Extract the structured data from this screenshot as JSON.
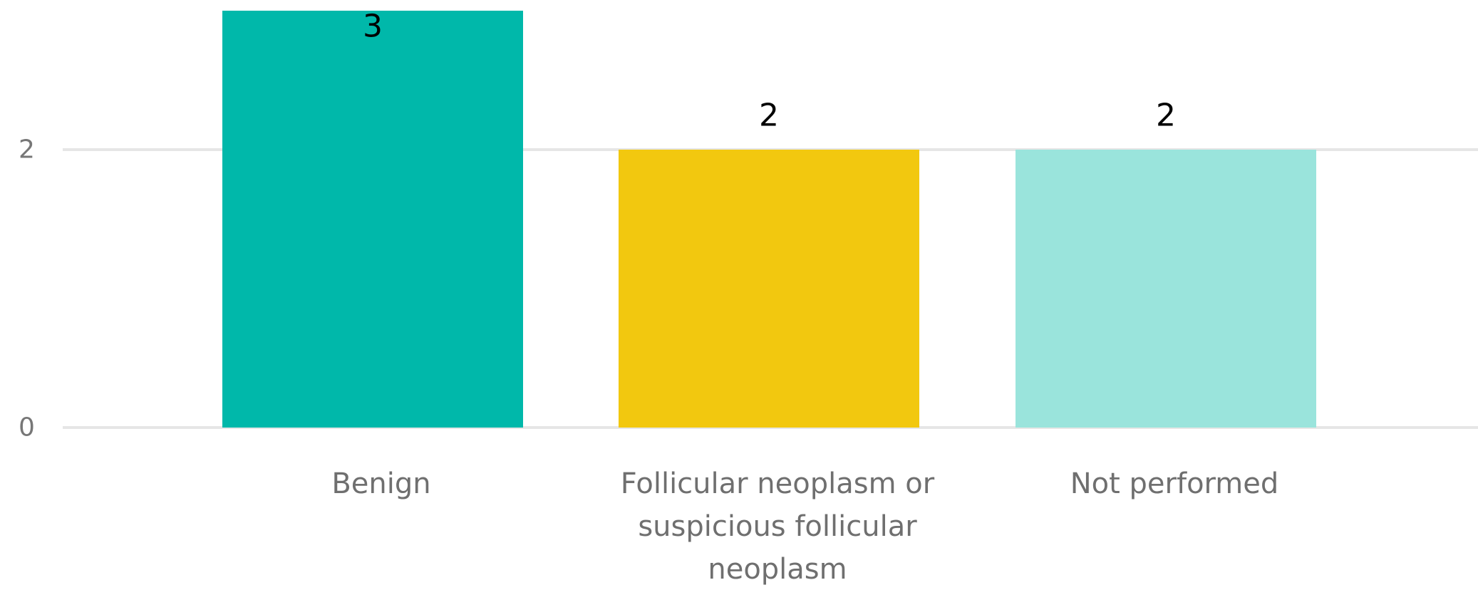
{
  "chart_data": {
    "type": "bar",
    "categories": [
      [
        "Benign"
      ],
      [
        "Follicular neoplasm or",
        "suspicious follicular",
        "neoplasm"
      ],
      [
        "Not performed"
      ]
    ],
    "values": [
      3,
      2,
      2
    ],
    "colors": [
      "#00B8AA",
      "#F2C80F",
      "#9AE4DC"
    ],
    "y_ticks": [
      0,
      2
    ],
    "ylim": [
      0,
      3
    ],
    "grid": true,
    "data_labels": true,
    "legend": false,
    "title": "",
    "xlabel": "",
    "ylabel": "",
    "gridline_color": "#E6E6E6"
  }
}
